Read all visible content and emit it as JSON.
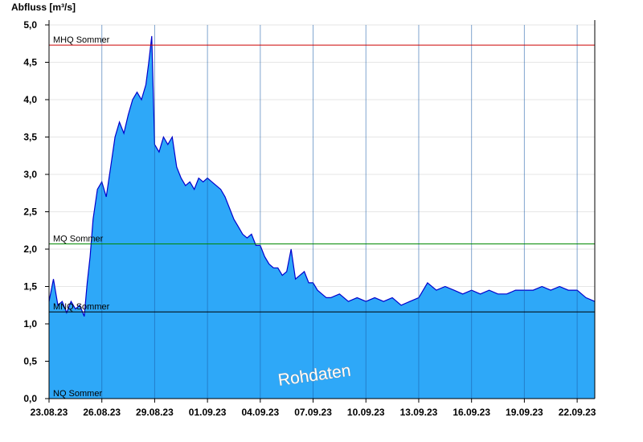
{
  "chart_data": {
    "type": "area",
    "ylabel": "Abfluss [m³/s]",
    "ylim": [
      0,
      5.0
    ],
    "yticks": [
      "0,0",
      "0,5",
      "1,0",
      "1,5",
      "2,0",
      "2,5",
      "3,0",
      "3,5",
      "4,0",
      "4,5",
      "5,0"
    ],
    "xlim": [
      "2023-08-23T00:00",
      "2023-09-23T00:00"
    ],
    "xticks": [
      {
        "date": "2023-08-23",
        "label": "23.08.23"
      },
      {
        "date": "2023-08-26",
        "label": "26.08.23"
      },
      {
        "date": "2023-08-29",
        "label": "29.08.23"
      },
      {
        "date": "2023-09-01",
        "label": "01.09.23"
      },
      {
        "date": "2023-09-04",
        "label": "04.09.23"
      },
      {
        "date": "2023-09-07",
        "label": "07.09.23"
      },
      {
        "date": "2023-09-10",
        "label": "10.09.23"
      },
      {
        "date": "2023-09-13",
        "label": "13.09.23"
      },
      {
        "date": "2023-09-16",
        "label": "16.09.23"
      },
      {
        "date": "2023-09-19",
        "label": "19.09.23"
      },
      {
        "date": "2023-09-22",
        "label": "22.09.23"
      }
    ],
    "reference_lines": [
      {
        "label": "MHQ Sommer",
        "value": 4.73,
        "color": "#cc0000"
      },
      {
        "label": "MQ Sommer",
        "value": 2.07,
        "color": "#008800"
      },
      {
        "label": "MNQ Sommer",
        "value": 1.16,
        "color": "#000000"
      },
      {
        "label": "NQ Sommer",
        "value": 0.0,
        "color": "#000000"
      }
    ],
    "watermark": "Rohdaten",
    "fill_color": "#2ea8f8",
    "line_color": "#0000cc",
    "series": [
      {
        "x": [
          "2023-08-23T00:00",
          "2023-08-23T06:00",
          "2023-08-23T12:00",
          "2023-08-23T18:00",
          "2023-08-24T00:00",
          "2023-08-24T06:00",
          "2023-08-24T12:00",
          "2023-08-24T18:00",
          "2023-08-25T00:00",
          "2023-08-25T04:00",
          "2023-08-25T08:00",
          "2023-08-25T12:00",
          "2023-08-25T18:00",
          "2023-08-26T00:00",
          "2023-08-26T06:00",
          "2023-08-26T12:00",
          "2023-08-26T18:00",
          "2023-08-27T00:00",
          "2023-08-27T06:00",
          "2023-08-27T12:00",
          "2023-08-27T18:00",
          "2023-08-28T00:00",
          "2023-08-28T06:00",
          "2023-08-28T12:00",
          "2023-08-28T16:00",
          "2023-08-28T20:00",
          "2023-08-29T00:00",
          "2023-08-29T06:00",
          "2023-08-29T12:00",
          "2023-08-29T18:00",
          "2023-08-30T00:00",
          "2023-08-30T06:00",
          "2023-08-30T12:00",
          "2023-08-30T18:00",
          "2023-08-31T00:00",
          "2023-08-31T06:00",
          "2023-08-31T12:00",
          "2023-08-31T18:00",
          "2023-09-01T00:00",
          "2023-09-01T06:00",
          "2023-09-01T12:00",
          "2023-09-01T18:00",
          "2023-09-02T00:00",
          "2023-09-02T06:00",
          "2023-09-02T12:00",
          "2023-09-02T18:00",
          "2023-09-03T00:00",
          "2023-09-03T06:00",
          "2023-09-03T12:00",
          "2023-09-03T18:00",
          "2023-09-04T00:00",
          "2023-09-04T06:00",
          "2023-09-04T12:00",
          "2023-09-04T18:00",
          "2023-09-05T00:00",
          "2023-09-05T06:00",
          "2023-09-05T12:00",
          "2023-09-05T18:00",
          "2023-09-06T00:00",
          "2023-09-06T06:00",
          "2023-09-06T12:00",
          "2023-09-06T18:00",
          "2023-09-07T00:00",
          "2023-09-07T06:00",
          "2023-09-07T12:00",
          "2023-09-07T18:00",
          "2023-09-08T00:00",
          "2023-09-08T12:00",
          "2023-09-09T00:00",
          "2023-09-09T12:00",
          "2023-09-10T00:00",
          "2023-09-10T12:00",
          "2023-09-11T00:00",
          "2023-09-11T12:00",
          "2023-09-12T00:00",
          "2023-09-12T12:00",
          "2023-09-13T00:00",
          "2023-09-13T12:00",
          "2023-09-14T00:00",
          "2023-09-14T12:00",
          "2023-09-15T00:00",
          "2023-09-15T12:00",
          "2023-09-16T00:00",
          "2023-09-16T12:00",
          "2023-09-17T00:00",
          "2023-09-17T12:00",
          "2023-09-18T00:00",
          "2023-09-18T12:00",
          "2023-09-19T00:00",
          "2023-09-19T12:00",
          "2023-09-20T00:00",
          "2023-09-20T12:00",
          "2023-09-21T00:00",
          "2023-09-21T12:00",
          "2023-09-22T00:00",
          "2023-09-22T12:00",
          "2023-09-23T00:00"
        ],
        "y": [
          1.3,
          1.6,
          1.25,
          1.3,
          1.15,
          1.3,
          1.2,
          1.25,
          1.1,
          1.55,
          1.9,
          2.4,
          2.8,
          2.9,
          2.7,
          3.1,
          3.5,
          3.7,
          3.55,
          3.8,
          4.0,
          4.1,
          4.0,
          4.2,
          4.5,
          4.85,
          3.4,
          3.3,
          3.5,
          3.4,
          3.5,
          3.1,
          2.95,
          2.85,
          2.9,
          2.8,
          2.95,
          2.9,
          2.95,
          2.9,
          2.85,
          2.8,
          2.7,
          2.55,
          2.4,
          2.3,
          2.2,
          2.15,
          2.2,
          2.05,
          2.05,
          1.9,
          1.8,
          1.75,
          1.75,
          1.65,
          1.7,
          2.0,
          1.6,
          1.65,
          1.7,
          1.55,
          1.55,
          1.45,
          1.4,
          1.35,
          1.35,
          1.4,
          1.3,
          1.35,
          1.3,
          1.35,
          1.3,
          1.35,
          1.25,
          1.3,
          1.35,
          1.55,
          1.45,
          1.5,
          1.45,
          1.4,
          1.45,
          1.4,
          1.45,
          1.4,
          1.4,
          1.45,
          1.45,
          1.45,
          1.5,
          1.45,
          1.5,
          1.45,
          1.45,
          1.35,
          1.3
        ]
      }
    ]
  }
}
